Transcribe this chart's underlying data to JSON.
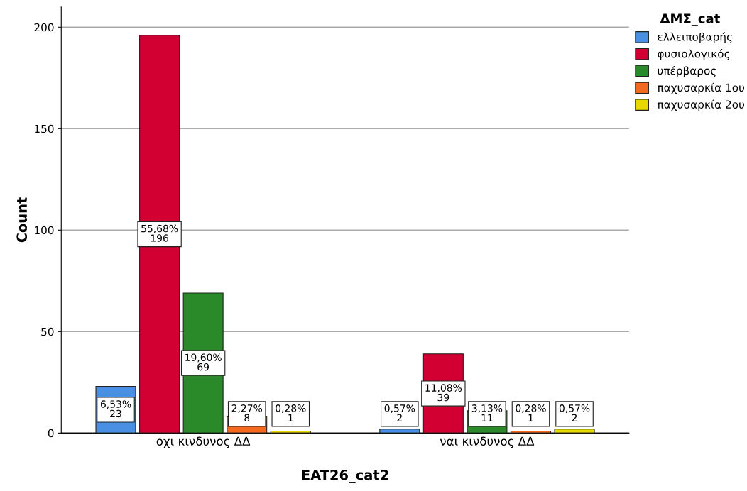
{
  "chart_data": {
    "type": "bar",
    "xlabel": "EAT26_cat2",
    "ylabel": "Count",
    "legend_title": "ΔΜΣ_cat",
    "categories": [
      "οχι κινδυνος ΔΔ",
      "ναι κινδυνος ΔΔ"
    ],
    "series": [
      {
        "name": "ελλειποβαρής",
        "color": "#4a90e2",
        "values": [
          23,
          2
        ],
        "value_labels": [
          "6,53%\n23",
          "0,57%\n2"
        ]
      },
      {
        "name": "φυσιολογικός",
        "color": "#d20032",
        "values": [
          196,
          39
        ],
        "value_labels": [
          "55,68%\n196",
          "11,08%\n39"
        ]
      },
      {
        "name": "υπέρβαρος",
        "color": "#2a8a2a",
        "values": [
          69,
          11
        ],
        "value_labels": [
          "19,60%\n69",
          "3,13%\n11"
        ]
      },
      {
        "name": "παχυσαρκία 1ου",
        "color": "#f26a21",
        "values": [
          8,
          1
        ],
        "value_labels": [
          "2,27%\n8",
          "0,28%\n1"
        ]
      },
      {
        "name": "παχυσαρκία 2ου",
        "color": "#e6d800",
        "values": [
          1,
          2
        ],
        "value_labels": [
          "0,28%\n1",
          "0,57%\n2"
        ]
      }
    ],
    "ylim": [
      0,
      210
    ],
    "yticks": [
      0,
      50,
      100,
      150,
      200
    ],
    "grid": "y",
    "legend": "top right"
  }
}
